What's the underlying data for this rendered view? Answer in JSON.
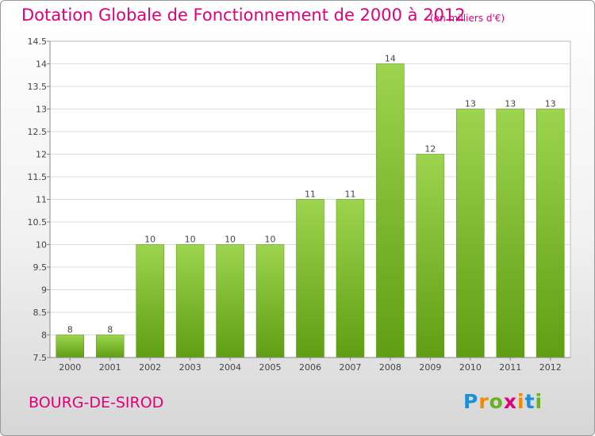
{
  "chart_data": {
    "type": "bar",
    "title": "Dotation Globale de Fonctionnement de 2000 à 2012",
    "subtitle": "(en milliers d'€)",
    "xlabel": "",
    "ylabel": "",
    "categories": [
      "2000",
      "2001",
      "2002",
      "2003",
      "2004",
      "2005",
      "2006",
      "2007",
      "2008",
      "2009",
      "2010",
      "2011",
      "2012"
    ],
    "values": [
      8,
      8,
      10,
      10,
      10,
      10,
      11,
      11,
      14,
      12,
      13,
      13,
      13
    ],
    "data_labels": [
      "8",
      "8",
      "10",
      "10",
      "10",
      "10",
      "11",
      "11",
      "14",
      "12",
      "13",
      "13",
      "13"
    ],
    "ylim": [
      7.5,
      14.5
    ],
    "y_ticks": [
      7.5,
      8,
      8.5,
      9,
      9.5,
      10,
      10.5,
      11,
      11.5,
      12,
      12.5,
      13,
      13.5,
      14,
      14.5
    ],
    "grid": true,
    "bar_color": "#7fc235"
  },
  "footer": {
    "commune": "BOURG-DE-SIROD",
    "logo_letters": [
      "P",
      "r",
      "o",
      "x",
      "i",
      "t",
      "i"
    ]
  }
}
